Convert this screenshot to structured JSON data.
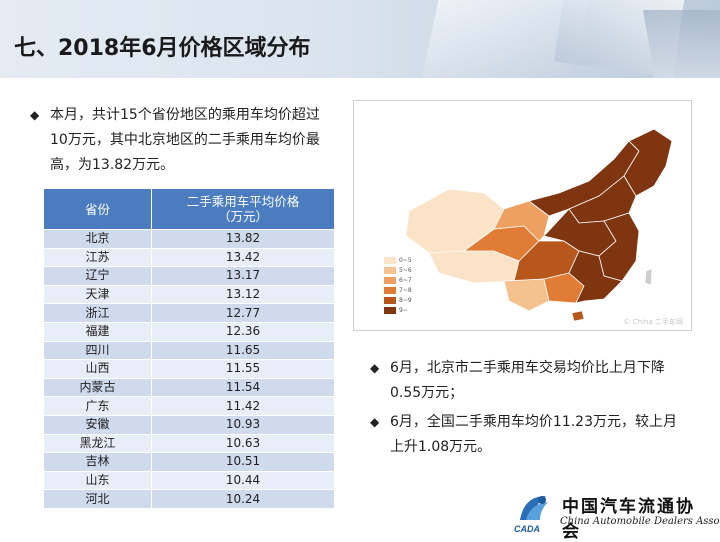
{
  "slide": {
    "title": "七、2018年6月价格区域分布"
  },
  "bullets": {
    "intro": "本月，共计15个省份地区的乘用车均价超过10万元，其中北京地区的二手乘用车均价最高，为13.82万元。",
    "june_beijing": "6月，北京市二手乘用车交易均价比上月下降0.55万元；",
    "june_national": "6月，全国二手乘用车均价11.23万元，较上月上升1.08万元。"
  },
  "table": {
    "header_province": "省份",
    "header_price_line1": "二手乘用车平均价格",
    "header_price_line2": "（万元）",
    "rows": [
      {
        "province": "北京",
        "price": "13.82"
      },
      {
        "province": "江苏",
        "price": "13.42"
      },
      {
        "province": "辽宁",
        "price": "13.17"
      },
      {
        "province": "天津",
        "price": "13.12"
      },
      {
        "province": "浙江",
        "price": "12.77"
      },
      {
        "province": "福建",
        "price": "12.36"
      },
      {
        "province": "四川",
        "price": "11.65"
      },
      {
        "province": "山西",
        "price": "11.55"
      },
      {
        "province": "内蒙古",
        "price": "11.54"
      },
      {
        "province": "广东",
        "price": "11.42"
      },
      {
        "province": "安徽",
        "price": "10.93"
      },
      {
        "province": "黑龙江",
        "price": "10.63"
      },
      {
        "province": "吉林",
        "price": "10.51"
      },
      {
        "province": "山东",
        "price": "10.44"
      },
      {
        "province": "河北",
        "price": "10.24"
      }
    ]
  },
  "map": {
    "legend": [
      {
        "label": "0~5",
        "color": "#fbe3c7"
      },
      {
        "label": "5~6",
        "color": "#f5c28f"
      },
      {
        "label": "6~7",
        "color": "#eda060"
      },
      {
        "label": "7~8",
        "color": "#e07c36"
      },
      {
        "label": "8~9",
        "color": "#b8571c"
      },
      {
        "label": "9~",
        "color": "#7f3510"
      }
    ],
    "watermark": "© China  二手车网"
  },
  "logo": {
    "name_cn": "中国汽车流通协会",
    "name_en": "China Automobile Dealers Association",
    "abbr": "CADA"
  },
  "colors": {
    "table_header": "#4b7cc0",
    "row_odd": "#cfdaed",
    "row_even": "#e8eef7"
  }
}
